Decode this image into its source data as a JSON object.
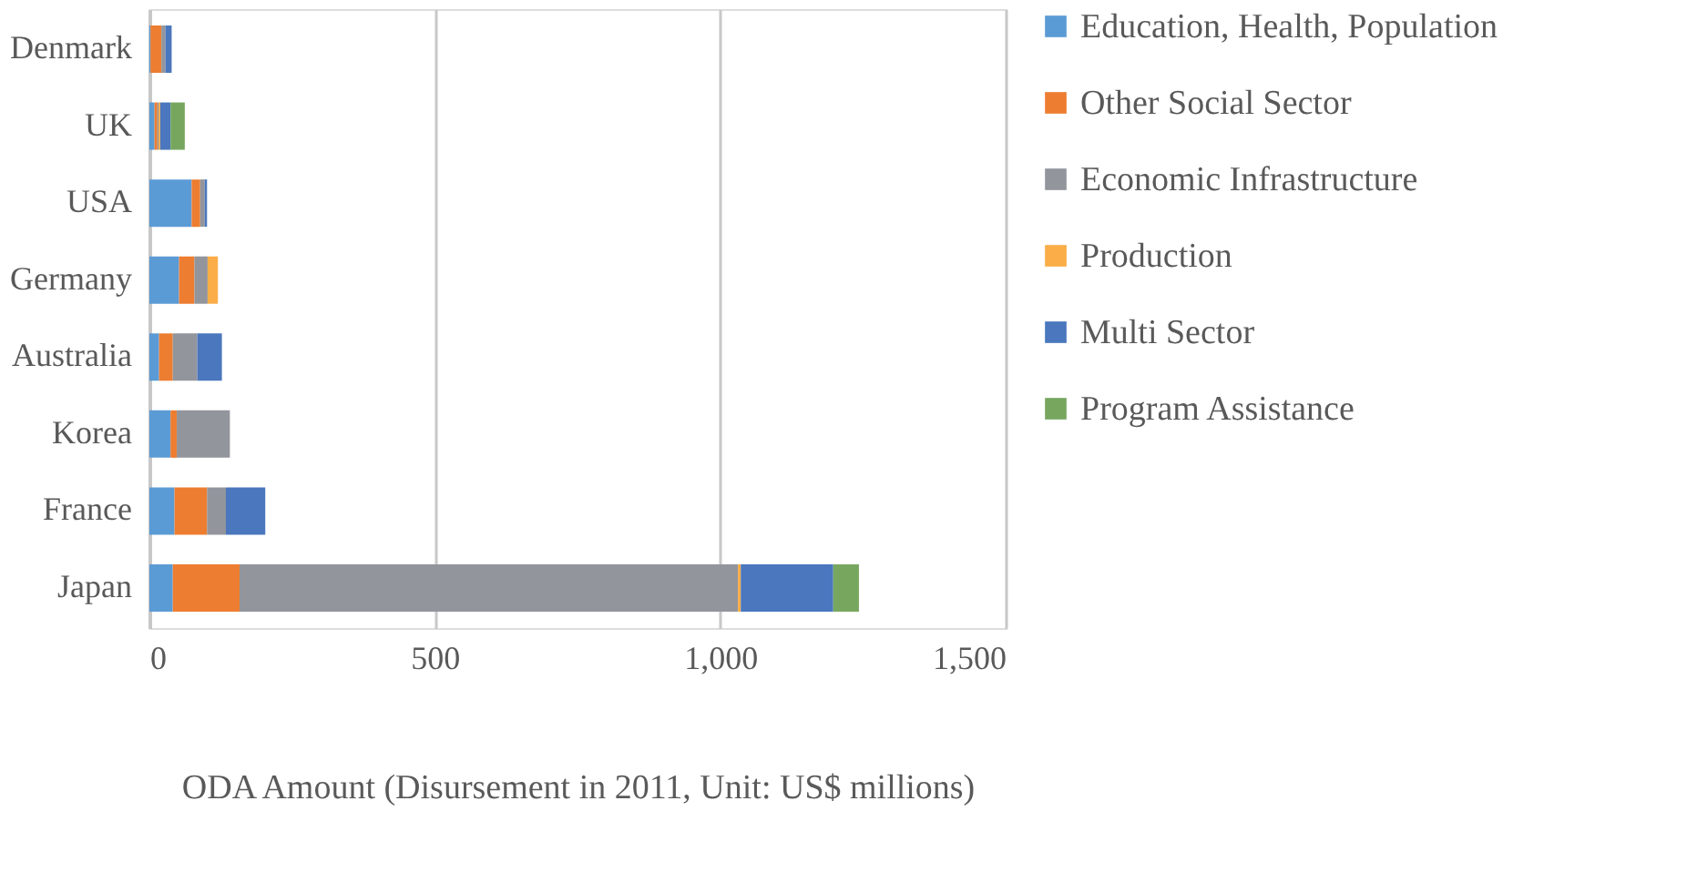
{
  "chart_data": {
    "type": "bar",
    "orientation": "horizontal",
    "stacked": true,
    "xlabel": "ODA Amount (Disursement in 2011, Unit: US$ millions)",
    "categories": [
      "Denmark",
      "UK",
      "USA",
      "Germany",
      "Australia",
      "Korea",
      "France",
      "Japan"
    ],
    "series": [
      {
        "name": "Education, Health, Population",
        "color": "#5b9bd5",
        "values": [
          2,
          9,
          74,
          52,
          17,
          37,
          44,
          41
        ]
      },
      {
        "name": "Other Social Sector",
        "color": "#ed7d31",
        "values": [
          19,
          5,
          15,
          27,
          24,
          11,
          57,
          117
        ]
      },
      {
        "name": "Economic Infrastructure",
        "color": "#92959c",
        "values": [
          7,
          2,
          8,
          23,
          43,
          93,
          33,
          873
        ]
      },
      {
        "name": "Production",
        "color": "#fbad47",
        "values": [
          0,
          3,
          0,
          18,
          0,
          0,
          0,
          5
        ]
      },
      {
        "name": "Multi Sector",
        "color": "#4a77bd",
        "values": [
          11,
          18,
          4,
          0,
          43,
          0,
          69,
          162
        ]
      },
      {
        "name": "Program Assistance",
        "color": "#77a75f",
        "values": [
          0,
          25,
          0,
          0,
          0,
          0,
          0,
          45
        ]
      }
    ],
    "xlim": [
      0,
      1500
    ],
    "xticks": [
      0,
      500,
      {
        "value": 1000,
        "label": "1,000"
      },
      {
        "value": 1500,
        "label": "1,500"
      }
    ],
    "grid": "x",
    "legend": "right"
  }
}
